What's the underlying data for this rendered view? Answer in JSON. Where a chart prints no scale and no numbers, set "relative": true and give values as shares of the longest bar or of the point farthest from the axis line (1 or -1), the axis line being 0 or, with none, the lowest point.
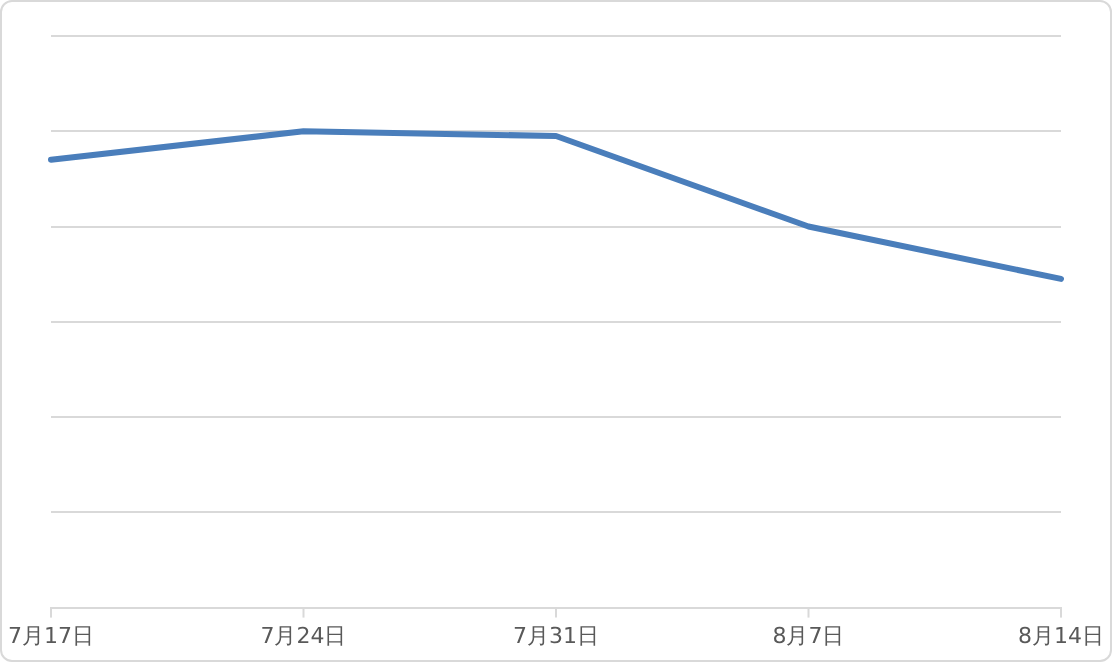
{
  "chart_data": {
    "type": "line",
    "relative": true,
    "categories": [
      "7月17日",
      "7月24日",
      "7月31日",
      "8月7日",
      "8月14日"
    ],
    "series": [
      {
        "color": "#4a7ebb",
        "values": [
          0.94,
          1,
          0.99,
          0.8,
          0.69
        ]
      }
    ],
    "grid": "y",
    "legend": false,
    "marker": "none",
    "line_style": "solid"
  }
}
